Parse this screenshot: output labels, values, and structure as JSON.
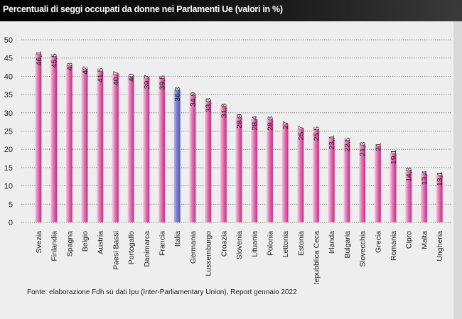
{
  "title": "Percentuali di seggi occupati da donne nei Parlamenti Ue (valori in %)",
  "source": "Fonte: elaborazione Fdh su dati Ipu (Inter-Parliamentary Union), Report gennaio 2022",
  "colors": {
    "bar": "#d23c8c",
    "highlight": "#6a6cc0",
    "background": "#eeeeee",
    "header": "#000000"
  },
  "chart_data": {
    "type": "bar",
    "title": "Percentuali di seggi occupati da donne nei Parlamenti Ue (valori in %)",
    "categories": [
      "Svezia",
      "Finlandia",
      "Spagna",
      "Belgio",
      "Austria",
      "Paesi Bassi",
      "Portogallo",
      "Danimarca",
      "Francia",
      "Italia",
      "Germania",
      "Lussemburgo",
      "Croazia",
      "Slovenia",
      "Lituania",
      "Polonia",
      "Lettonia",
      "Estonia",
      "Repubblica Ceca",
      "Irlanda",
      "Bulgaria",
      "Slovecchia",
      "Grecia",
      "Romania",
      "Cipro",
      "Malta",
      "Ungheria"
    ],
    "values": [
      46.1,
      45.5,
      43,
      42,
      41.5,
      40.7,
      40,
      39.7,
      39.5,
      36.3,
      34.9,
      33.3,
      31.8,
      28.9,
      28.4,
      28.3,
      27,
      25.7,
      25.5,
      23.1,
      22.5,
      21.3,
      21,
      19.1,
      14.3,
      13.4,
      13.1
    ],
    "value_labels": [
      "46,1",
      "45,5",
      "43",
      "42",
      "41,5",
      "40,7",
      "40",
      "39,7",
      "39,5",
      "36,3",
      "34,9",
      "33,3",
      "31,8",
      "28,9",
      "28,4",
      "28,3",
      "27",
      "25,7",
      "25,5",
      "23,1",
      "22,5",
      "21,3",
      "21",
      "19,1",
      "14,3",
      "13,4",
      "13,1"
    ],
    "highlight_category": "Italia",
    "xlabel": "",
    "ylabel": "",
    "ylim": [
      0,
      50
    ],
    "yticks": [
      0,
      5,
      10,
      15,
      20,
      25,
      30,
      35,
      40,
      45,
      50
    ],
    "ytick_labels": [
      "0",
      "5",
      "10",
      "15",
      "20",
      "25",
      "30",
      "35",
      "40",
      "45",
      "50"
    ],
    "grid": true,
    "legend": "none"
  }
}
